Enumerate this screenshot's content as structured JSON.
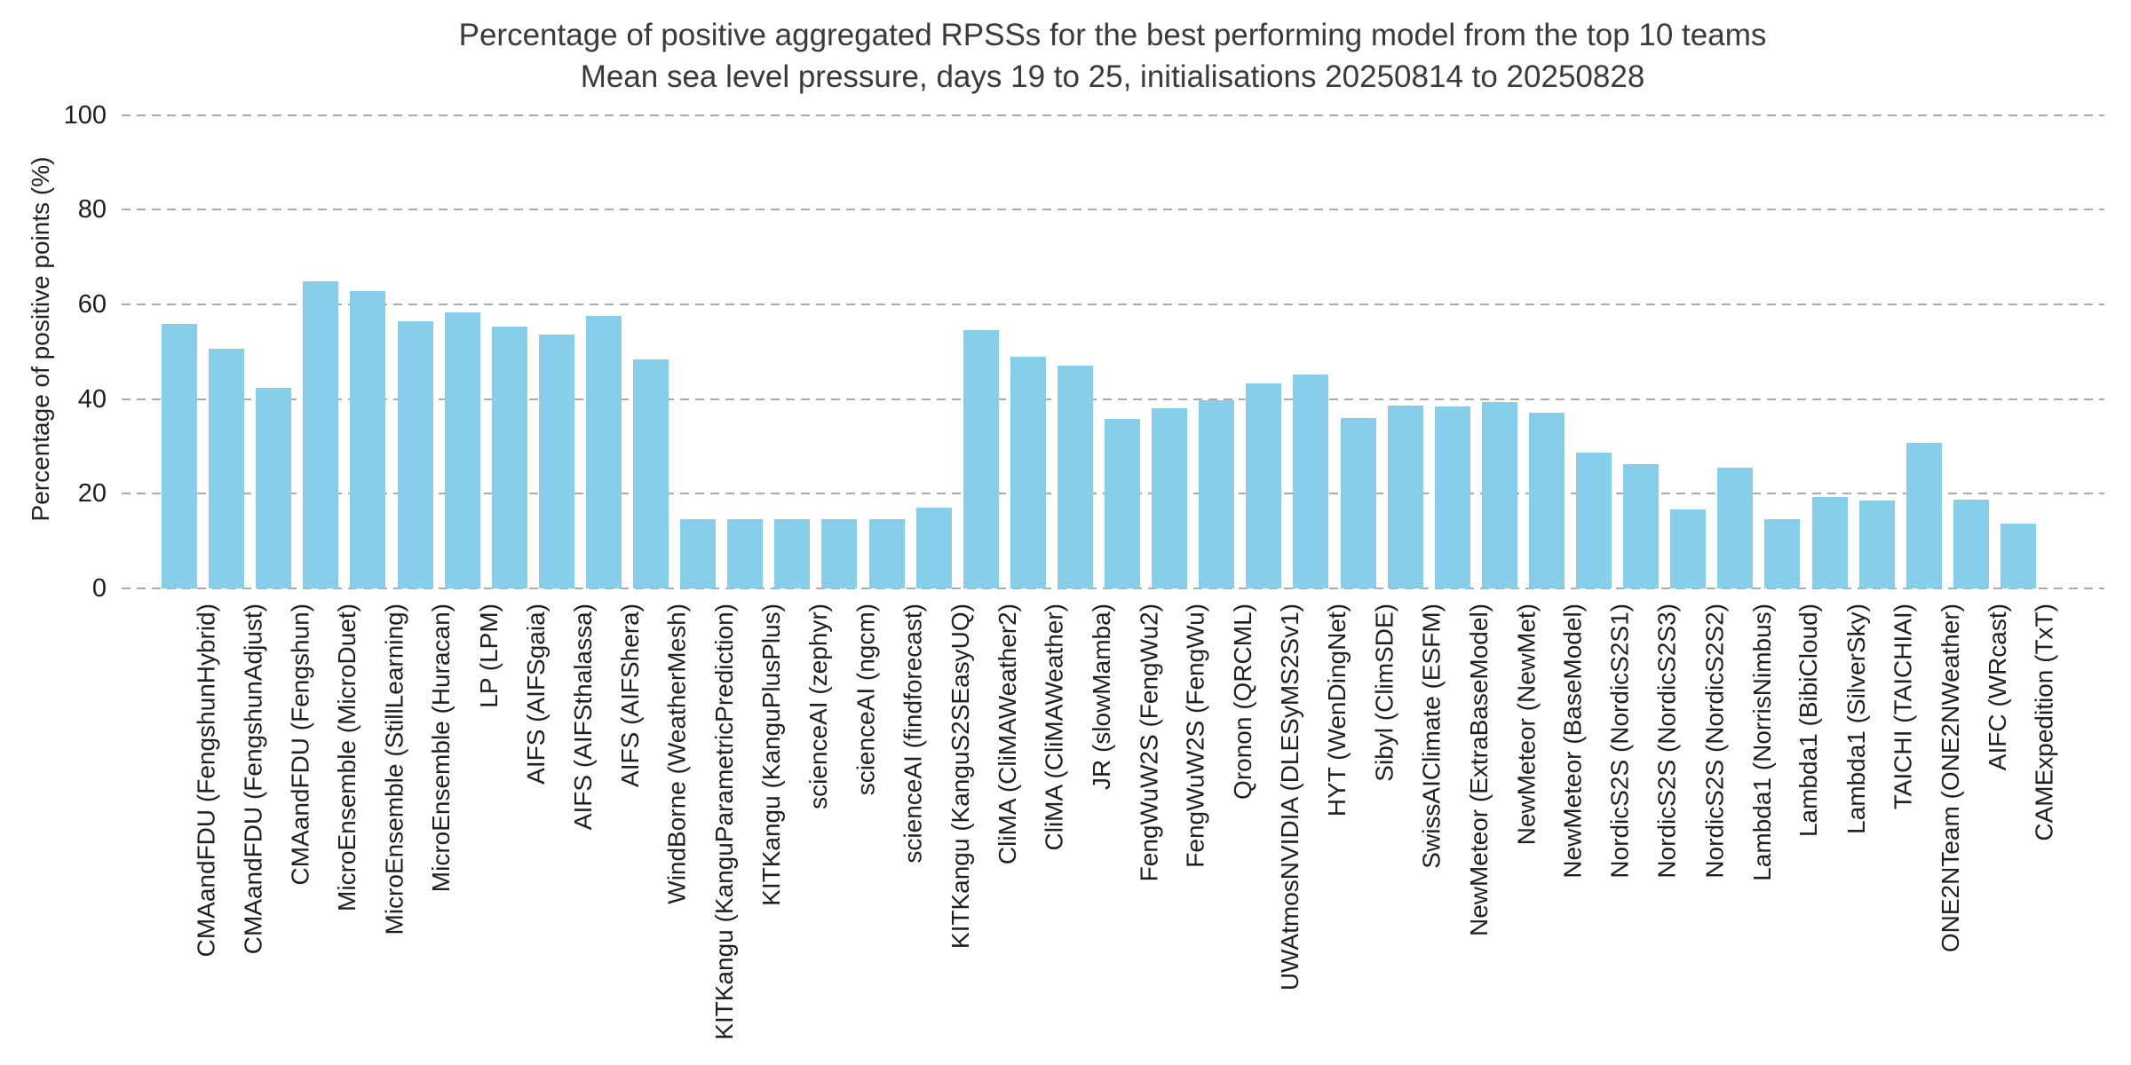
{
  "title": {
    "line1": "Percentage of positive aggregated RPSSs for the best performing model from the top 10 teams",
    "line2": "Mean sea level pressure, days 19 to 25, initialisations 20250814 to 20250828"
  },
  "colors": {
    "bar": "#87CEEB",
    "grid": "#ababab",
    "text": "#1f1f1f",
    "title_text": "#3a3a3a",
    "background": "#ffffff"
  },
  "chart_data": {
    "type": "bar",
    "title": "Percentage of positive aggregated RPSSs for the best performing model from the top 10 teams",
    "subtitle": "Mean sea level pressure, days 19 to 25, initialisations 20250814 to 20250828",
    "xlabel": "",
    "ylabel": "Percentage of positive points (%)",
    "ylim": [
      0,
      100
    ],
    "yticks": [
      0,
      20,
      40,
      60,
      80,
      100
    ],
    "grid": "horizontal, dashed, gray",
    "legend_position": "none",
    "bar_color": "#87CEEB",
    "x_tick_rotation": 90,
    "categories": [
      "CMAandFDU (FengshunHybrid)",
      "CMAandFDU (FengshunAdjust)",
      "CMAandFDU (Fengshun)",
      "MicroEnsemble (MicroDuet)",
      "MicroEnsemble (StillLearning)",
      "MicroEnsemble (Huracan)",
      "LP (LPM)",
      "AIFS (AIFSgaia)",
      "AIFS (AIFSthalassa)",
      "AIFS (AIFShera)",
      "WindBorne (WeatherMesh)",
      "KITKangu (KanguParametricPrediction)",
      "KITKangu (KanguPlusPlus)",
      "scienceAI (zephyr)",
      "scienceAI (ngcm)",
      "scienceAI (findforecast)",
      "KITKangu (KanguS2SEasyUQ)",
      "CliMA (CliMAWeather2)",
      "CliMA (CliMAWeather)",
      "JR (slowMamba)",
      "FengWuW2S (FengWu2)",
      "FengWuW2S (FengWu)",
      "Qronon (QRCML)",
      "UWAtmosNVIDIA (DLESyMS2Sv1)",
      "HYT (WenDingNet)",
      "Sibyl (ClimSDE)",
      "SwissAIClimate (ESFM)",
      "NewMeteor (ExtraBaseModel)",
      "NewMeteor (NewMet)",
      "NewMeteor (BaseModel)",
      "NordicS2S (NordicS2S1)",
      "NordicS2S (NordicS2S3)",
      "NordicS2S (NordicS2S2)",
      "Lambda1 (NorrisNimbus)",
      "Lambda1 (BibiCloud)",
      "Lambda1 (SilverSky)",
      "TAICHI (TAICHIAI)",
      "ONE2NTeam (ONE2NWeather)",
      "AIFC (WRcast)",
      "CAMExpedition (TxT)"
    ],
    "values": [
      55.9,
      50.6,
      42.4,
      64.8,
      62.9,
      56.4,
      58.3,
      55.3,
      53.6,
      57.5,
      48.3,
      14.7,
      14.7,
      14.7,
      14.7,
      14.7,
      17.1,
      54.5,
      49.0,
      47.1,
      35.8,
      38.0,
      39.8,
      43.3,
      45.2,
      36.0,
      38.7,
      38.5,
      39.3,
      37.1,
      28.7,
      26.2,
      16.6,
      25.5,
      14.7,
      19.3,
      18.5,
      30.7,
      18.7,
      13.7
    ]
  }
}
